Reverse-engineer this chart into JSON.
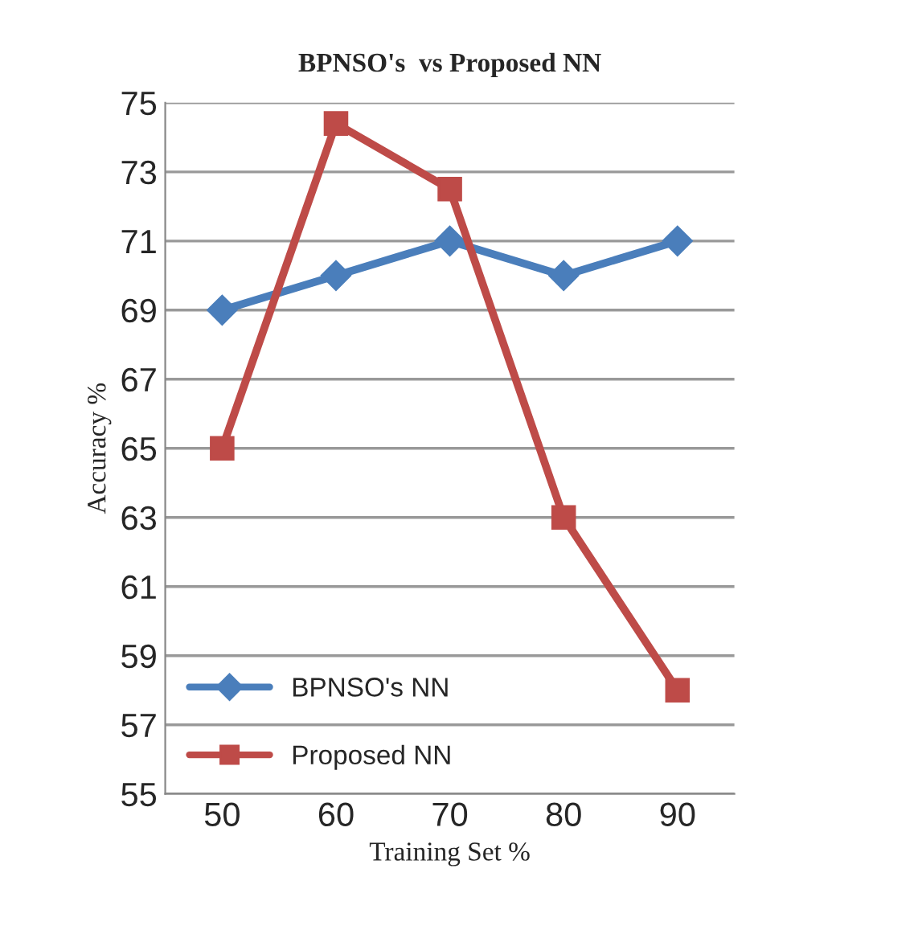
{
  "chart_data": {
    "type": "line",
    "title": "BPNSO's  vs Proposed NN",
    "xlabel": "Training Set %",
    "ylabel": "Accuracy %",
    "categories": [
      "50",
      "60",
      "70",
      "80",
      "90"
    ],
    "series": [
      {
        "name": "BPNSO's NN",
        "color": "#4a7ebb",
        "marker": "diamond",
        "values": [
          69,
          70,
          71,
          70,
          71
        ]
      },
      {
        "name": "Proposed NN",
        "color": "#be4b48",
        "marker": "square",
        "values": [
          65,
          74.4,
          72.5,
          63,
          58
        ]
      }
    ],
    "ylim": [
      55,
      75
    ],
    "yticks": [
      55,
      57,
      59,
      61,
      63,
      65,
      67,
      69,
      71,
      73,
      75
    ],
    "grid": "y",
    "legend": "bottom left",
    "line_style": "solid"
  }
}
